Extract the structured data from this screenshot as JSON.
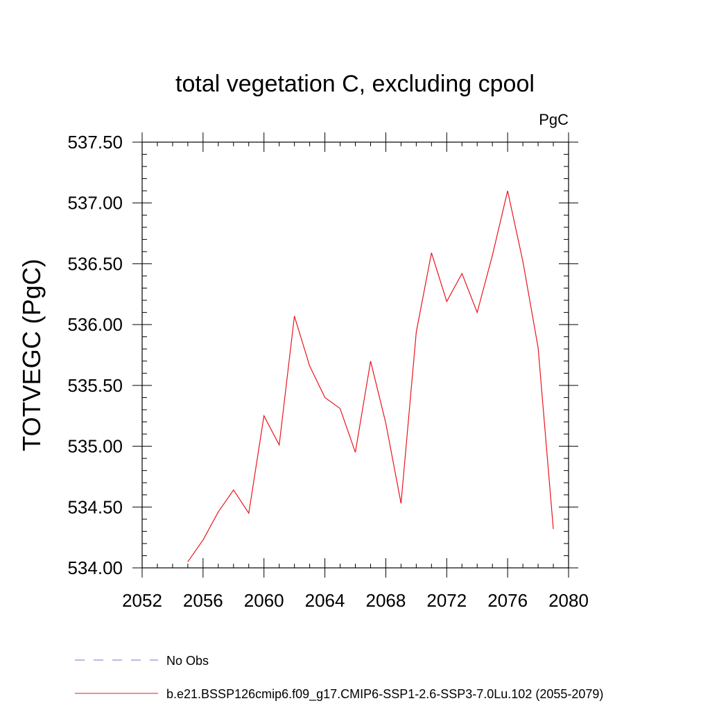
{
  "chart_data": {
    "type": "line",
    "title": "total vegetation C, excluding cpool",
    "units": "PgC",
    "ylabel": "TOTVEGC  (PgC)",
    "xlabel": "",
    "xlim": [
      2052,
      2080
    ],
    "ylim": [
      534.0,
      537.5
    ],
    "x_ticks": [
      "2052",
      "2056",
      "2060",
      "2064",
      "2068",
      "2072",
      "2076",
      "2080"
    ],
    "y_ticks": [
      "534.00",
      "534.50",
      "535.00",
      "535.50",
      "536.00",
      "536.50",
      "537.00",
      "537.50"
    ],
    "series": [
      {
        "name": "b.e21.BSSP126cmip6.f09_g17.CMIP6-SSP1-2.6-SSP3-7.0Lu.102 (2055-2079)",
        "color": "#e8141c",
        "x": [
          2055,
          2056,
          2057,
          2058,
          2059,
          2060,
          2061,
          2062,
          2063,
          2064,
          2065,
          2066,
          2067,
          2068,
          2069,
          2070,
          2071,
          2072,
          2073,
          2074,
          2075,
          2076,
          2077,
          2078,
          2079
        ],
        "y": [
          534.05,
          534.23,
          534.46,
          534.64,
          534.45,
          535.25,
          535.01,
          536.07,
          535.66,
          535.4,
          535.31,
          534.95,
          535.7,
          535.19,
          534.53,
          535.94,
          536.59,
          536.19,
          536.42,
          536.1,
          536.57,
          537.1,
          536.52,
          535.81,
          534.32
        ]
      }
    ],
    "legend": [
      {
        "label": "No Obs",
        "color": "#7f70c0",
        "style": "dashed"
      },
      {
        "label": "b.e21.BSSP126cmip6.f09_g17.CMIP6-SSP1-2.6-SSP3-7.0Lu.102 (2055-2079)",
        "color": "#e8141c",
        "style": "solid"
      }
    ],
    "grid": false,
    "legend_placement": "bottom"
  }
}
